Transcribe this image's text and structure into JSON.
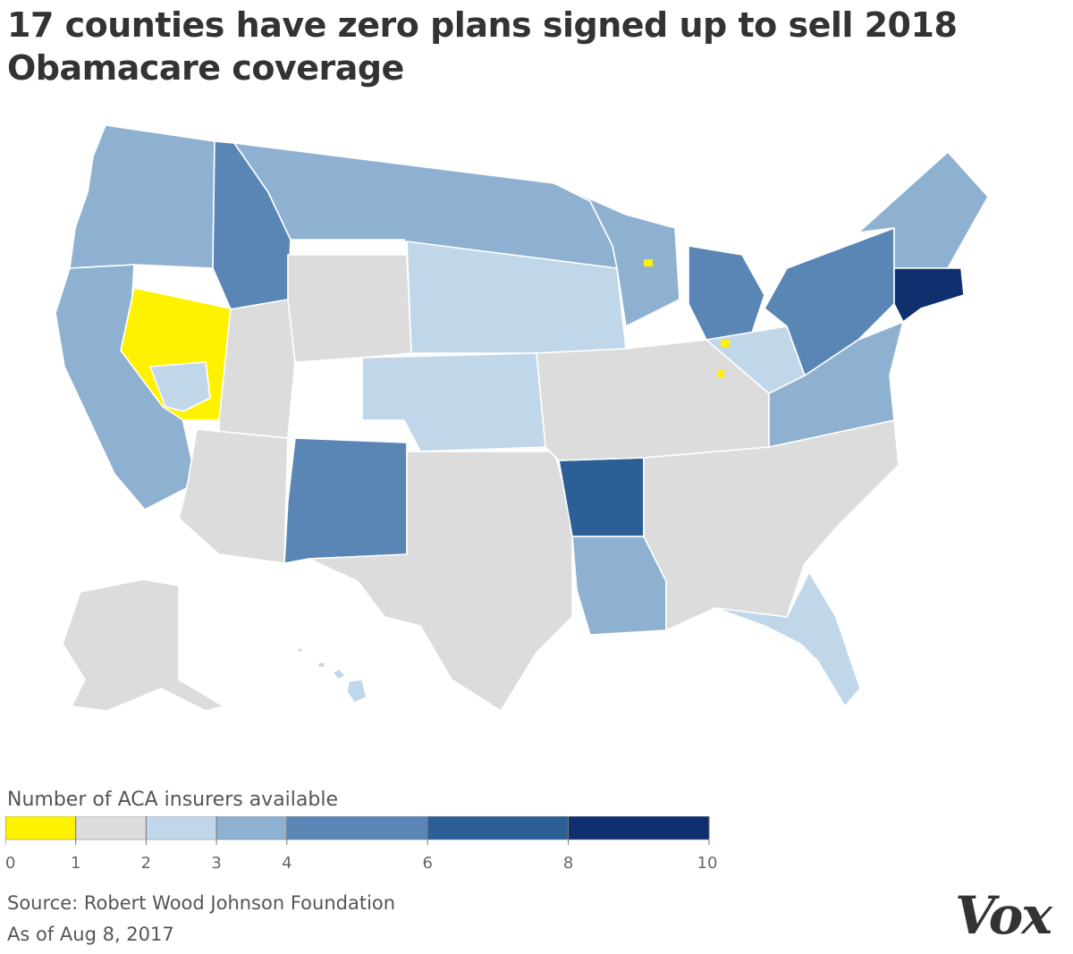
{
  "title": "17 counties have zero plans signed up to sell 2018 Obamacare coverage",
  "legend": {
    "title": "Number of ACA insurers available",
    "bins": [
      {
        "from": 0,
        "to": 1,
        "color": "#fff200"
      },
      {
        "from": 1,
        "to": 2,
        "color": "#dcdcdc"
      },
      {
        "from": 2,
        "to": 3,
        "color": "#c0d7ea"
      },
      {
        "from": 3,
        "to": 4,
        "color": "#8eb1d1"
      },
      {
        "from": 4,
        "to": 6,
        "color": "#5a86b5"
      },
      {
        "from": 6,
        "to": 8,
        "color": "#2c5f96"
      },
      {
        "from": 8,
        "to": 10,
        "color": "#0f2f6e"
      }
    ],
    "ticks": [
      "0",
      "1",
      "2",
      "3",
      "4",
      "6",
      "8",
      "10"
    ]
  },
  "source": "Source: Robert Wood Johnson Foundation",
  "as_of": "As of Aug 8, 2017",
  "logo": "Vox",
  "regions": [
    {
      "name": "pacific-northwest",
      "bin": 3
    },
    {
      "name": "northern-rockies",
      "bin": 4
    },
    {
      "name": "northern-plains",
      "bin": 3
    },
    {
      "name": "upper-midwest",
      "bin": 2
    },
    {
      "name": "california",
      "bin": 3
    },
    {
      "name": "nevada",
      "bin": 0
    },
    {
      "name": "southern-nevada",
      "bin": 2
    },
    {
      "name": "great-basin",
      "bin": 1
    },
    {
      "name": "wyoming",
      "bin": 1
    },
    {
      "name": "central-plains",
      "bin": 2
    },
    {
      "name": "four-corners",
      "bin": 4
    },
    {
      "name": "southwest",
      "bin": 1
    },
    {
      "name": "texas",
      "bin": 1
    },
    {
      "name": "arkansas",
      "bin": 5
    },
    {
      "name": "louisiana",
      "bin": 3
    },
    {
      "name": "midwest",
      "bin": 1
    },
    {
      "name": "southeast",
      "bin": 1
    },
    {
      "name": "florida",
      "bin": 2
    },
    {
      "name": "michigan",
      "bin": 4
    },
    {
      "name": "wisconsin",
      "bin": 3
    },
    {
      "name": "new-england",
      "bin": 3
    },
    {
      "name": "new-york",
      "bin": 4
    },
    {
      "name": "southern-new-england",
      "bin": 6
    },
    {
      "name": "mid-atlantic",
      "bin": 3
    },
    {
      "name": "ohio",
      "bin": 2
    },
    {
      "name": "alaska",
      "bin": 1
    },
    {
      "name": "hawaii",
      "bin": 2
    }
  ]
}
